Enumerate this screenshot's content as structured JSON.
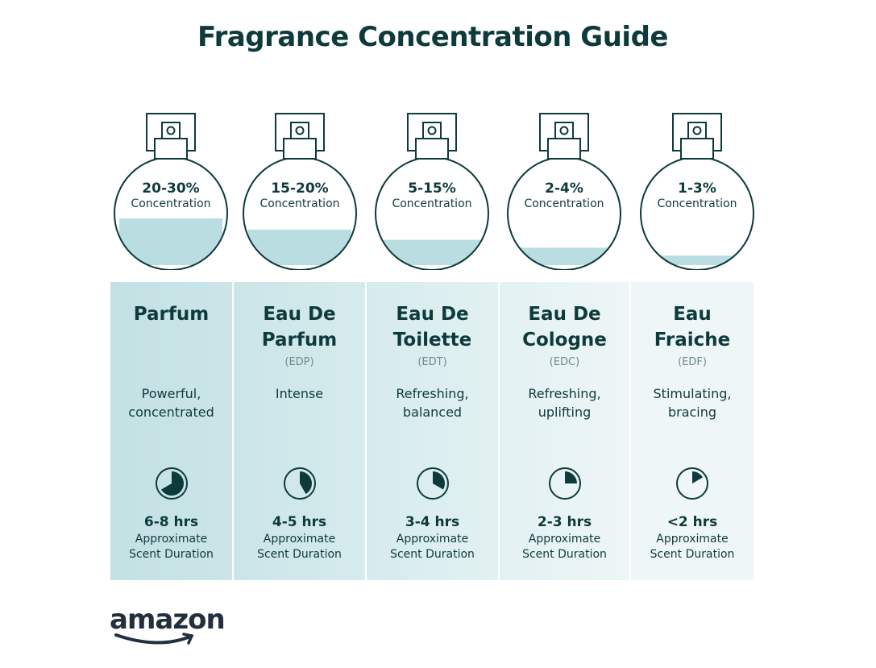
{
  "title": "Fragrance Concentration Guide",
  "concentration_label": "Concentration",
  "duration_label_1": "Approximate",
  "duration_label_2": "Scent Duration",
  "logo": "amazon",
  "colors": {
    "text": "#0e3a3c",
    "liquid": "#b9dde0",
    "panel_dark": "#c3e1e4",
    "panel_light": "#f0f7f8"
  },
  "types": [
    {
      "concentration": "20-30%",
      "fill_level": 0.4,
      "name_1": "Parfum",
      "name_2": "",
      "abbr": "",
      "desc_1": "Powerful,",
      "desc_2": "concentrated",
      "hours": "6-8 hrs",
      "clock_fill_hours": 8
    },
    {
      "concentration": "15-20%",
      "fill_level": 0.3,
      "name_1": "Eau De",
      "name_2": "Parfum",
      "abbr": "(EDP)",
      "desc_1": "Intense",
      "desc_2": "",
      "hours": "4-5 hrs",
      "clock_fill_hours": 5
    },
    {
      "concentration": "5-15%",
      "fill_level": 0.21,
      "name_1": "Eau De",
      "name_2": "Toilette",
      "abbr": "(EDT)",
      "desc_1": "Refreshing,",
      "desc_2": "balanced",
      "hours": "3-4 hrs",
      "clock_fill_hours": 4
    },
    {
      "concentration": "2-4%",
      "fill_level": 0.14,
      "name_1": "Eau De",
      "name_2": "Cologne",
      "abbr": "(EDC)",
      "desc_1": "Refreshing,",
      "desc_2": "uplifting",
      "hours": "2-3 hrs",
      "clock_fill_hours": 3
    },
    {
      "concentration": "1-3%",
      "fill_level": 0.07,
      "name_1": "Eau",
      "name_2": "Fraiche",
      "abbr": "(EDF)",
      "desc_1": "Stimulating,",
      "desc_2": "bracing",
      "hours": "<2 hrs",
      "clock_fill_hours": 2
    }
  ]
}
